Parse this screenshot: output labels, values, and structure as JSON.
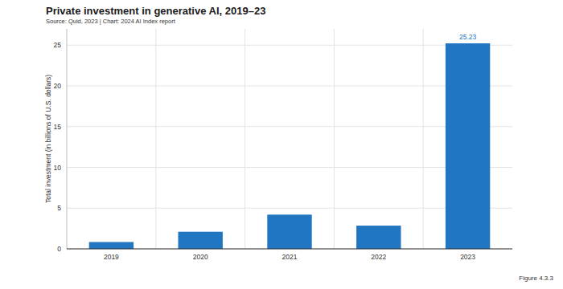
{
  "chart_data": {
    "type": "bar",
    "title": "Private investment in generative AI, 2019–23",
    "subtitle": "Source: Quid, 2023 | Chart: 2024 AI Index report",
    "y_label": "Total investment (in billions of U.S. dollars)",
    "caption": "Figure 4.3.3",
    "categories": [
      "2019",
      "2020",
      "2021",
      "2022",
      "2023"
    ],
    "values": [
      0.84,
      2.1,
      4.2,
      2.85,
      25.23
    ],
    "value_labels": [
      null,
      null,
      null,
      null,
      "25.23"
    ],
    "data_labels": true,
    "color": "#2176c1",
    "ylim": [
      0,
      27
    ],
    "yticks": [
      0,
      5,
      10,
      15,
      20,
      25
    ],
    "grid": true
  }
}
